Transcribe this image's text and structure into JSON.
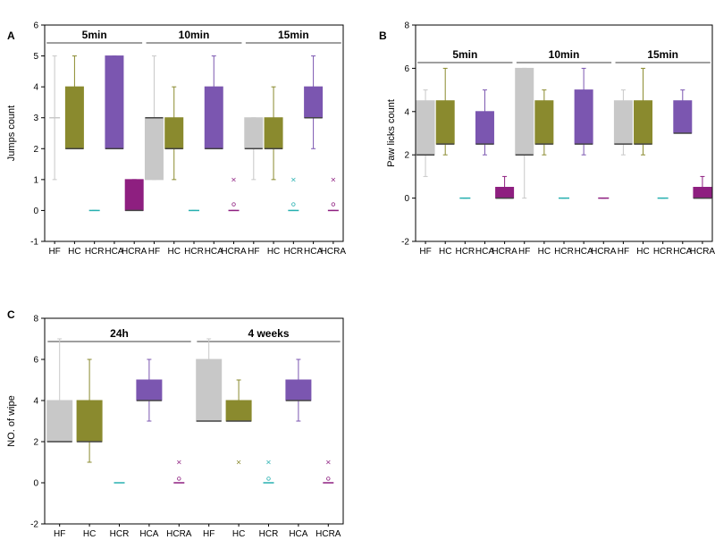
{
  "colors": {
    "HF": "#c8c8c8",
    "HC": "#8a8a2e",
    "HCR": "#27b0b0",
    "HCA": "#7b56b0",
    "HCRA": "#8e1f80"
  },
  "chart_data": [
    {
      "panel": "A",
      "type": "box",
      "ylabel": "Jumps count",
      "ylim": [
        -1,
        6
      ],
      "yticks": [
        "-1",
        "0",
        "1",
        "2",
        "3",
        "4",
        "5",
        "6"
      ],
      "categories": [
        "HF",
        "HC",
        "HCR",
        "HCA",
        "HCRA",
        "HF",
        "HC",
        "HCR",
        "HCA",
        "HCRA",
        "HF",
        "HC",
        "HCR",
        "HCA",
        "HCRA"
      ],
      "groups": [
        {
          "label": "5min",
          "start": 0,
          "end": 4
        },
        {
          "label": "10min",
          "start": 5,
          "end": 9
        },
        {
          "label": "15min",
          "start": 10,
          "end": 14
        }
      ],
      "series": [
        {
          "category": "HF",
          "min": 1,
          "q1": 3,
          "median": 3,
          "q3": 3,
          "max": 5,
          "outliers": []
        },
        {
          "category": "HC",
          "min": 2,
          "q1": 2,
          "median": 2,
          "q3": 4,
          "max": 5,
          "outliers": []
        },
        {
          "category": "HCR",
          "min": 0,
          "q1": 0,
          "median": 0,
          "q3": 0,
          "max": 0,
          "outliers": []
        },
        {
          "category": "HCA",
          "min": 2,
          "q1": 2,
          "median": 2,
          "q3": 5,
          "max": 5,
          "outliers": []
        },
        {
          "category": "HCRA",
          "min": 0,
          "q1": 0,
          "median": 0,
          "q3": 1,
          "max": 1,
          "outliers": []
        },
        {
          "category": "HF",
          "min": 1,
          "q1": 1,
          "median": 3,
          "q3": 3,
          "max": 5,
          "outliers": []
        },
        {
          "category": "HC",
          "min": 1,
          "q1": 2,
          "median": 2,
          "q3": 3,
          "max": 4,
          "outliers": []
        },
        {
          "category": "HCR",
          "min": 0,
          "q1": 0,
          "median": 0,
          "q3": 0,
          "max": 0,
          "outliers": []
        },
        {
          "category": "HCA",
          "min": 2,
          "q1": 2,
          "median": 2,
          "q3": 4,
          "max": 5,
          "outliers": []
        },
        {
          "category": "HCRA",
          "min": 0,
          "q1": 0,
          "median": 0,
          "q3": 0,
          "max": 0,
          "outliers": [
            0.2,
            1
          ]
        },
        {
          "category": "HF",
          "min": 1,
          "q1": 2,
          "median": 2,
          "q3": 3,
          "max": 3,
          "outliers": []
        },
        {
          "category": "HC",
          "min": 1,
          "q1": 2,
          "median": 2,
          "q3": 3,
          "max": 4,
          "outliers": []
        },
        {
          "category": "HCR",
          "min": 0,
          "q1": 0,
          "median": 0,
          "q3": 0,
          "max": 0,
          "outliers": [
            0.2,
            1
          ]
        },
        {
          "category": "HCA",
          "min": 2,
          "q1": 3,
          "median": 3,
          "q3": 4,
          "max": 5,
          "outliers": []
        },
        {
          "category": "HCRA",
          "min": 0,
          "q1": 0,
          "median": 0,
          "q3": 0,
          "max": 0,
          "outliers": [
            0.2,
            1
          ]
        }
      ]
    },
    {
      "panel": "B",
      "type": "box",
      "ylabel": "Paw licks count",
      "ylim": [
        -2,
        8
      ],
      "yticks": [
        "-2",
        "0",
        "2",
        "4",
        "6",
        "8"
      ],
      "categories": [
        "HF",
        "HC",
        "HCR",
        "HCA",
        "HCRA",
        "HF",
        "HC",
        "HCR",
        "HCA",
        "HCRA",
        "HF",
        "HC",
        "HCR",
        "HCA",
        "HCRA"
      ],
      "groups": [
        {
          "label": "5min",
          "start": 0,
          "end": 4
        },
        {
          "label": "10min",
          "start": 5,
          "end": 9
        },
        {
          "label": "15min",
          "start": 10,
          "end": 14
        }
      ],
      "series": [
        {
          "category": "HF",
          "min": 1,
          "q1": 2,
          "median": 2,
          "q3": 4.5,
          "max": 5,
          "outliers": []
        },
        {
          "category": "HC",
          "min": 2,
          "q1": 2.5,
          "median": 2.5,
          "q3": 4.5,
          "max": 6,
          "outliers": []
        },
        {
          "category": "HCR",
          "min": 0,
          "q1": 0,
          "median": 0,
          "q3": 0,
          "max": 0,
          "outliers": []
        },
        {
          "category": "HCA",
          "min": 2,
          "q1": 2.5,
          "median": 2.5,
          "q3": 4,
          "max": 5,
          "outliers": []
        },
        {
          "category": "HCRA",
          "min": 0,
          "q1": 0,
          "median": 0,
          "q3": 0.5,
          "max": 1,
          "outliers": []
        },
        {
          "category": "HF",
          "min": 0,
          "q1": 2,
          "median": 2,
          "q3": 6,
          "max": 6,
          "outliers": []
        },
        {
          "category": "HC",
          "min": 2,
          "q1": 2.5,
          "median": 2.5,
          "q3": 4.5,
          "max": 5,
          "outliers": []
        },
        {
          "category": "HCR",
          "min": 0,
          "q1": 0,
          "median": 0,
          "q3": 0,
          "max": 0,
          "outliers": []
        },
        {
          "category": "HCA",
          "min": 2,
          "q1": 2.5,
          "median": 2.5,
          "q3": 5,
          "max": 6,
          "outliers": []
        },
        {
          "category": "HCRA",
          "min": 0,
          "q1": 0,
          "median": 0,
          "q3": 0,
          "max": 0,
          "outliers": []
        },
        {
          "category": "HF",
          "min": 2,
          "q1": 2.5,
          "median": 2.5,
          "q3": 4.5,
          "max": 5,
          "outliers": []
        },
        {
          "category": "HC",
          "min": 2,
          "q1": 2.5,
          "median": 2.5,
          "q3": 4.5,
          "max": 6,
          "outliers": []
        },
        {
          "category": "HCR",
          "min": 0,
          "q1": 0,
          "median": 0,
          "q3": 0,
          "max": 0,
          "outliers": []
        },
        {
          "category": "HCA",
          "min": 3,
          "q1": 3,
          "median": 3,
          "q3": 4.5,
          "max": 5,
          "outliers": []
        },
        {
          "category": "HCRA",
          "min": 0,
          "q1": 0,
          "median": 0,
          "q3": 0.5,
          "max": 1,
          "outliers": []
        }
      ]
    },
    {
      "panel": "C",
      "type": "box",
      "ylabel": "NO. of wipe",
      "ylim": [
        -2,
        8
      ],
      "yticks": [
        "-2",
        "0",
        "2",
        "4",
        "6",
        "8"
      ],
      "categories": [
        "HF",
        "HC",
        "HCR",
        "HCA",
        "HCRA",
        "HF",
        "HC",
        "HCR",
        "HCA",
        "HCRA"
      ],
      "groups": [
        {
          "label": "24h",
          "start": 0,
          "end": 4
        },
        {
          "label": "4 weeks",
          "start": 5,
          "end": 9
        }
      ],
      "series": [
        {
          "category": "HF",
          "min": 2,
          "q1": 2,
          "median": 2,
          "q3": 4,
          "max": 7,
          "outliers": []
        },
        {
          "category": "HC",
          "min": 1,
          "q1": 2,
          "median": 2,
          "q3": 4,
          "max": 6,
          "outliers": []
        },
        {
          "category": "HCR",
          "min": 0,
          "q1": 0,
          "median": 0,
          "q3": 0,
          "max": 0,
          "outliers": []
        },
        {
          "category": "HCA",
          "min": 3,
          "q1": 4,
          "median": 4,
          "q3": 5,
          "max": 6,
          "outliers": []
        },
        {
          "category": "HCRA",
          "min": 0,
          "q1": 0,
          "median": 0,
          "q3": 0,
          "max": 0,
          "outliers": [
            0.2,
            1
          ]
        },
        {
          "category": "HF",
          "min": 3,
          "q1": 3,
          "median": 3,
          "q3": 6,
          "max": 7,
          "outliers": []
        },
        {
          "category": "HC",
          "min": 3,
          "q1": 3,
          "median": 3,
          "q3": 4,
          "max": 5,
          "outliers": [
            1
          ]
        },
        {
          "category": "HCR",
          "min": 0,
          "q1": 0,
          "median": 0,
          "q3": 0,
          "max": 0,
          "outliers": [
            0.2,
            1
          ]
        },
        {
          "category": "HCA",
          "min": 3,
          "q1": 4,
          "median": 4,
          "q3": 5,
          "max": 6,
          "outliers": []
        },
        {
          "category": "HCRA",
          "min": 0,
          "q1": 0,
          "median": 0,
          "q3": 0,
          "max": 0,
          "outliers": [
            0.2,
            1
          ]
        }
      ]
    }
  ]
}
